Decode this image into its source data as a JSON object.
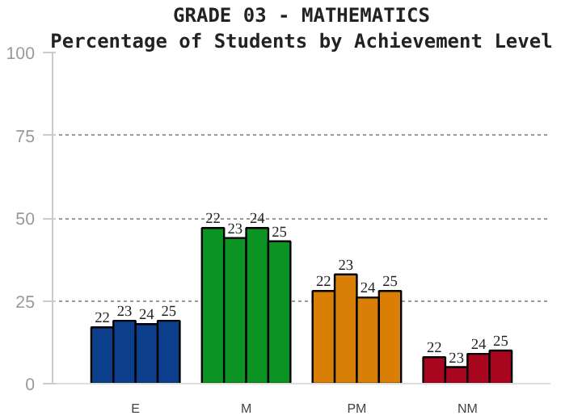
{
  "chart_data": {
    "type": "bar",
    "title": "GRADE 03 - MATHEMATICS",
    "subtitle": "Percentage of Students by Achievement Level",
    "categories": [
      "E",
      "M",
      "PM",
      "NM"
    ],
    "series": [
      {
        "name": "22",
        "colors": [
          "#0b3f8c",
          "#0b9423",
          "#d97f06",
          "#a8061f"
        ],
        "values": [
          17,
          47,
          28,
          8
        ]
      },
      {
        "name": "23",
        "colors": [
          "#0b3f8c",
          "#0b9423",
          "#d97f06",
          "#a8061f"
        ],
        "values": [
          19,
          44,
          33,
          5
        ]
      },
      {
        "name": "24",
        "colors": [
          "#0b3f8c",
          "#0b9423",
          "#d97f06",
          "#a8061f"
        ],
        "values": [
          18,
          47,
          26,
          9
        ]
      },
      {
        "name": "25",
        "colors": [
          "#0b3f8c",
          "#0b9423",
          "#d97f06",
          "#a8061f"
        ],
        "values": [
          19,
          43,
          28,
          10
        ]
      }
    ],
    "ylim": [
      0,
      100
    ],
    "yticks": [
      0,
      25,
      50,
      75,
      100
    ],
    "grid": "y"
  }
}
